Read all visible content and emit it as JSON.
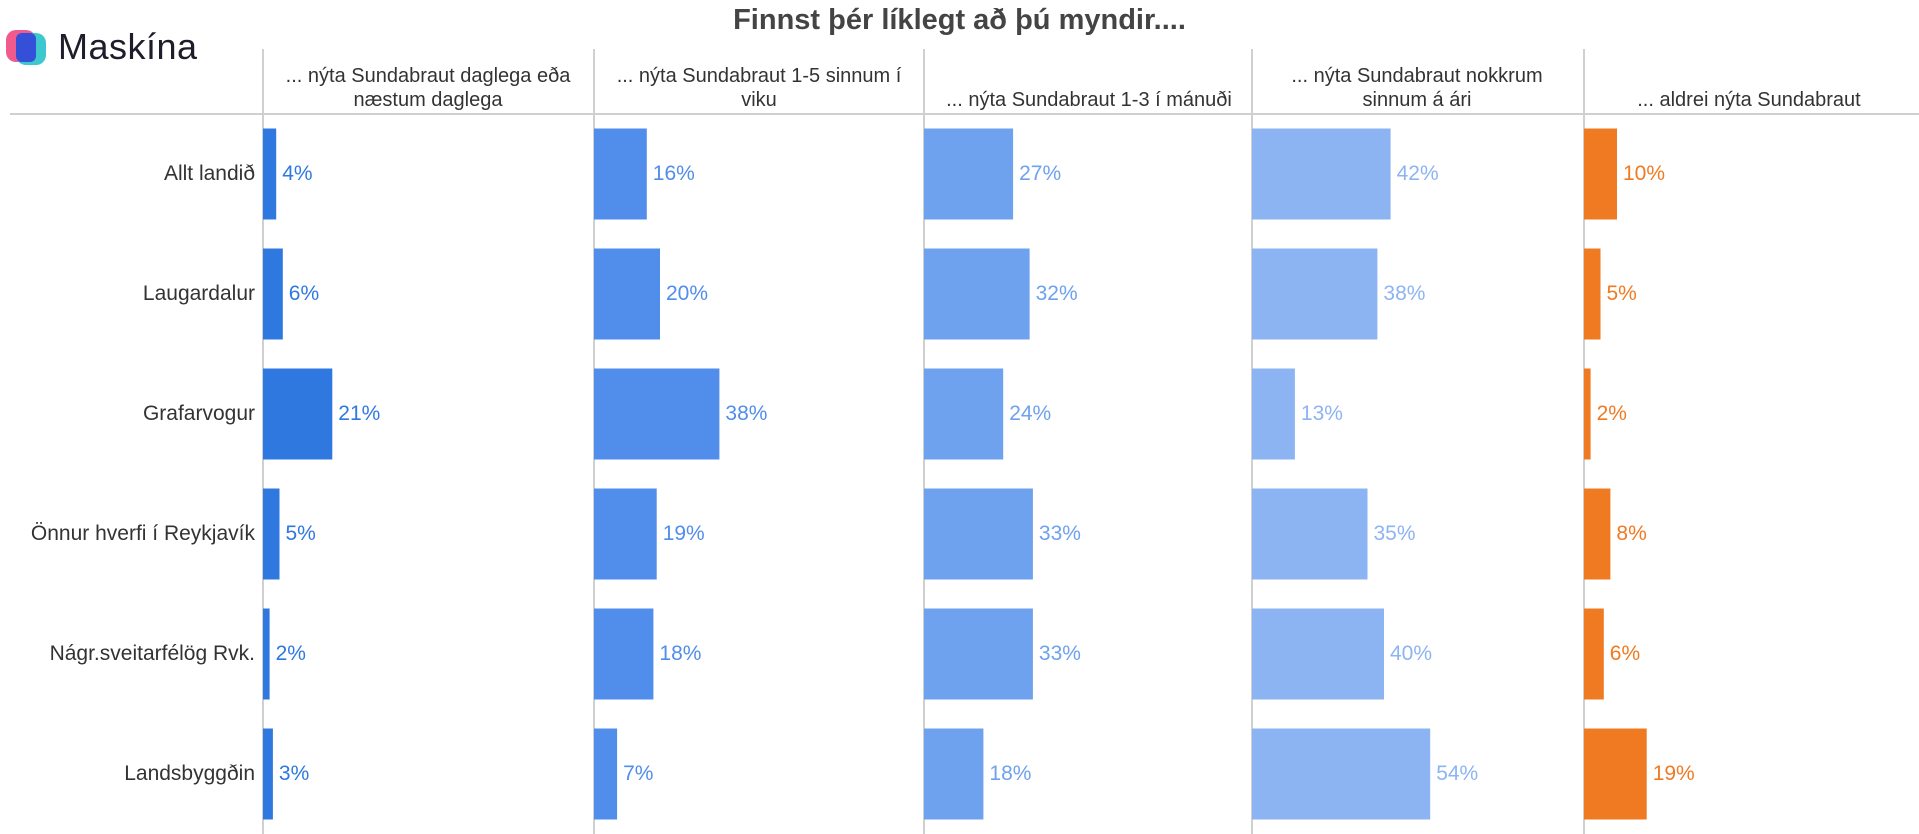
{
  "brand": "Maskína",
  "chart_data": {
    "type": "bar",
    "orientation": "horizontal",
    "title": "Finnst þér líklegt að þú myndir....",
    "categories": [
      "Allt landið",
      "Laugardalur",
      "Grafarvogur",
      "Önnur hverfi í Reykjavík",
      "Nágr.sveitarfélög Rvk.",
      "Landsbyggðin"
    ],
    "xlim": [
      0,
      100
    ],
    "series": [
      {
        "name": "... nýta Sundabraut daglega eða næstum daglega",
        "color": "#2f78e0",
        "values": [
          4,
          6,
          21,
          5,
          2,
          3
        ],
        "value_labels": [
          "4%",
          "6%",
          "21%",
          "5%",
          "2%",
          "3%"
        ]
      },
      {
        "name": "... nýta Sundabraut 1-5 sinnum í viku",
        "color": "#518dea",
        "values": [
          16,
          20,
          38,
          19,
          18,
          7
        ],
        "value_labels": [
          "16%",
          "20%",
          "38%",
          "19%",
          "18%",
          "7%"
        ]
      },
      {
        "name": "... nýta Sundabraut 1-3 í mánuði",
        "color": "#6ea1ee",
        "values": [
          27,
          32,
          24,
          33,
          33,
          18
        ],
        "value_labels": [
          "27%",
          "32%",
          "24%",
          "33%",
          "33%",
          "18%"
        ]
      },
      {
        "name": "... nýta Sundabraut nokkrum sinnum á ári",
        "color": "#8db4f2",
        "values": [
          42,
          38,
          13,
          35,
          40,
          54
        ],
        "value_labels": [
          "42%",
          "38%",
          "13%",
          "35%",
          "40%",
          "54%"
        ]
      },
      {
        "name": "... aldrei nýta Sundabraut",
        "color": "#f07a22",
        "values": [
          10,
          5,
          2,
          8,
          6,
          19
        ],
        "value_labels": [
          "10%",
          "5%",
          "2%",
          "8%",
          "6%",
          "19%"
        ]
      }
    ]
  }
}
